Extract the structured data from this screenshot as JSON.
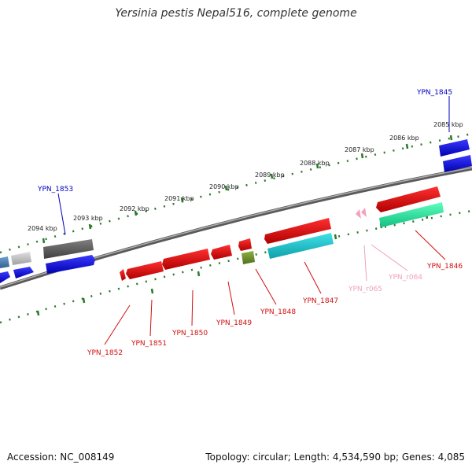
{
  "title": "Yersinia pestis Nepal516, complete genome",
  "accession": "Accession: NC_008149",
  "topology": "Topology: circular; Length: 4,534,590 bp; Genes: 4,085",
  "ticks": [
    "2085 kbp",
    "2086 kbp",
    "2087 kbp",
    "2088 kbp",
    "2089 kbp",
    "2090 kbp",
    "2091 kbp",
    "2092 kbp",
    "2093 kbp",
    "2094 kbp"
  ],
  "genes": {
    "g1845": "YPN_1845",
    "g1846": "YPN_1846",
    "g1847": "YPN_1847",
    "g1848": "YPN_1848",
    "g1849": "YPN_1849",
    "g1850": "YPN_1850",
    "g1851": "YPN_1851",
    "g1852": "YPN_1852",
    "g1853": "YPN_1853",
    "r064": "YPN_r064",
    "r065": "YPN_r065"
  },
  "colors": {
    "forward_cds": "#1010e0",
    "reverse_cds": "#e81010",
    "rna": "#f5a0c0",
    "cyan": "#20c8d0",
    "green": "#30e0a0",
    "gray": "#606060",
    "backbone": "#888888",
    "tick": "#2a7a2a"
  }
}
